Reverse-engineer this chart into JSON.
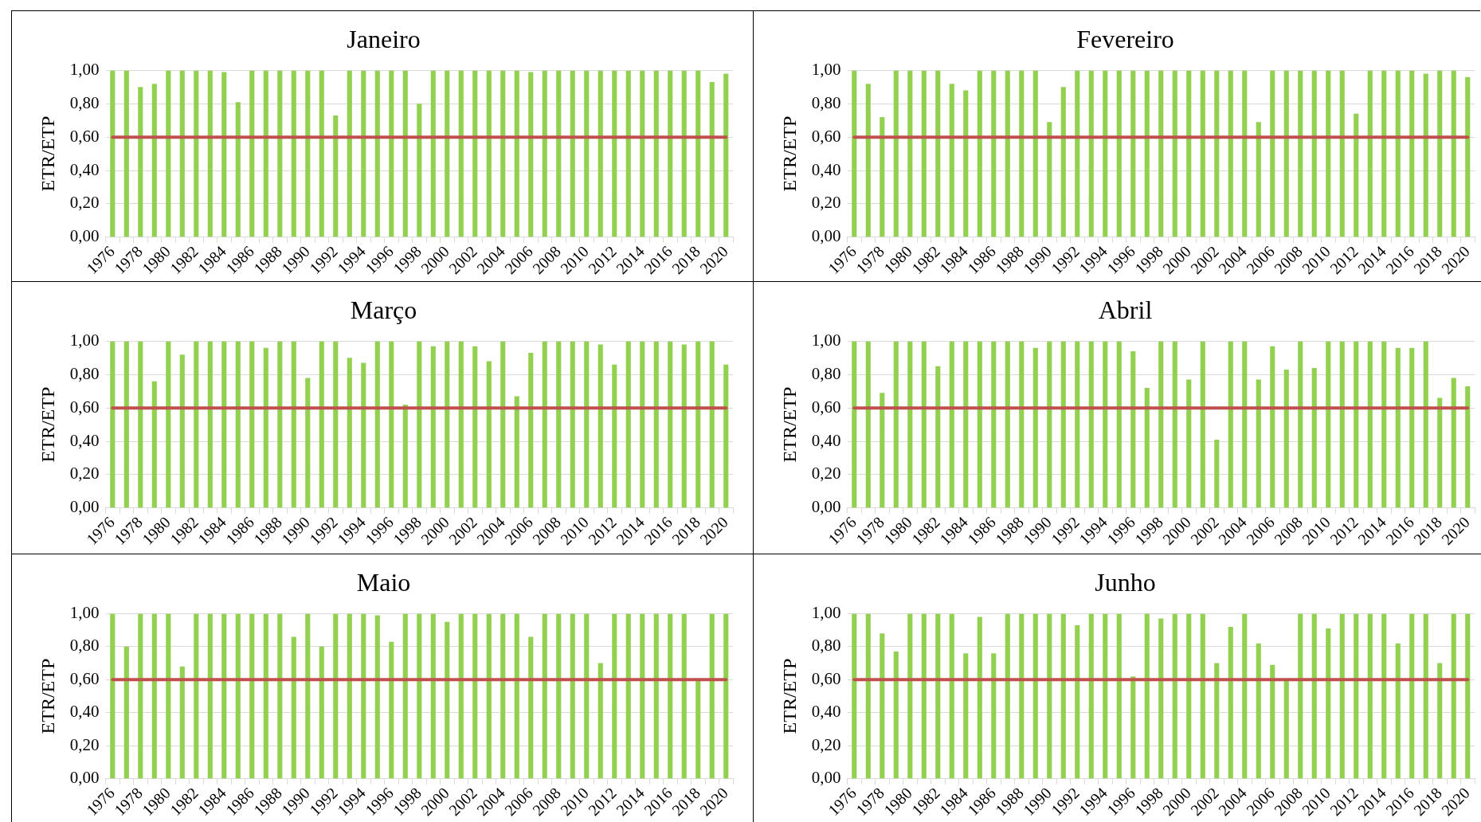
{
  "chart_data": [
    {
      "type": "bar",
      "title": "Janeiro",
      "ylabel": "ETR/ETP",
      "color": "#92d050",
      "ylim": [
        0,
        1
      ],
      "yticks": [
        {
          "value": 0,
          "label": "0,00"
        },
        {
          "value": 0.2,
          "label": "0,20"
        },
        {
          "value": 0.4,
          "label": "0,40"
        },
        {
          "value": 0.6,
          "label": "0,60"
        },
        {
          "value": 0.8,
          "label": "0,80"
        },
        {
          "value": 1,
          "label": "1,00"
        }
      ],
      "grid": "y",
      "ref_lines": [
        {
          "axis": "y",
          "value": 0.6,
          "color": "#c0504d"
        }
      ],
      "categories": [
        "1976",
        null,
        "1978",
        null,
        "1980",
        null,
        "1982",
        null,
        "1984",
        null,
        "1986",
        null,
        "1988",
        null,
        "1990",
        null,
        "1992",
        null,
        "1994",
        null,
        "1996",
        null,
        "1998",
        null,
        "2000",
        null,
        "2002",
        null,
        "2004",
        null,
        "2006",
        null,
        "2008",
        null,
        "2010",
        null,
        "2012",
        null,
        "2014",
        null,
        "2016",
        null,
        "2018",
        null,
        "2020"
      ],
      "values": [
        1,
        1,
        0.9,
        0.92,
        1,
        1,
        1,
        1,
        0.99,
        0.81,
        1,
        1,
        1,
        1,
        1,
        1,
        0.73,
        1,
        1,
        1,
        1,
        1,
        0.8,
        1,
        1,
        1,
        1,
        1,
        1,
        1,
        0.99,
        1,
        1,
        1,
        1,
        1,
        1,
        1,
        1,
        1,
        1,
        1,
        1,
        0.93,
        0.98
      ]
    },
    {
      "type": "bar",
      "title": "Fevereiro",
      "ylabel": "ETR/ETP",
      "color": "#92d050",
      "ylim": [
        0,
        1
      ],
      "yticks": [
        {
          "value": 0,
          "label": "0,00"
        },
        {
          "value": 0.2,
          "label": "0,20"
        },
        {
          "value": 0.4,
          "label": "0,40"
        },
        {
          "value": 0.6,
          "label": "0,60"
        },
        {
          "value": 0.8,
          "label": "0,80"
        },
        {
          "value": 1,
          "label": "1,00"
        }
      ],
      "grid": "y",
      "ref_lines": [
        {
          "axis": "y",
          "value": 0.6,
          "color": "#c0504d"
        }
      ],
      "categories": [
        "1976",
        null,
        "1978",
        null,
        "1980",
        null,
        "1982",
        null,
        "1984",
        null,
        "1986",
        null,
        "1988",
        null,
        "1990",
        null,
        "1992",
        null,
        "1994",
        null,
        "1996",
        null,
        "1998",
        null,
        "2000",
        null,
        "2002",
        null,
        "2004",
        null,
        "2006",
        null,
        "2008",
        null,
        "2010",
        null,
        "2012",
        null,
        "2014",
        null,
        "2016",
        null,
        "2018",
        null,
        "2020"
      ],
      "values": [
        1,
        0.92,
        0.72,
        1,
        1,
        1,
        1,
        0.92,
        0.88,
        1,
        1,
        1,
        1,
        1,
        0.69,
        0.9,
        1,
        1,
        1,
        1,
        1,
        1,
        1,
        1,
        1,
        1,
        1,
        1,
        1,
        0.69,
        1,
        1,
        1,
        1,
        1,
        1,
        0.74,
        1,
        1,
        1,
        1,
        0.98,
        1,
        1,
        0.96
      ]
    },
    {
      "type": "bar",
      "title": "Março",
      "ylabel": "ETR/ETP",
      "color": "#92d050",
      "ylim": [
        0,
        1
      ],
      "yticks": [
        {
          "value": 0,
          "label": "0,00"
        },
        {
          "value": 0.2,
          "label": "0,20"
        },
        {
          "value": 0.4,
          "label": "0,40"
        },
        {
          "value": 0.6,
          "label": "0,60"
        },
        {
          "value": 0.8,
          "label": "0,80"
        },
        {
          "value": 1,
          "label": "1,00"
        }
      ],
      "grid": "y",
      "ref_lines": [
        {
          "axis": "y",
          "value": 0.6,
          "color": "#c0504d"
        }
      ],
      "categories": [
        "1976",
        null,
        "1978",
        null,
        "1980",
        null,
        "1982",
        null,
        "1984",
        null,
        "1986",
        null,
        "1988",
        null,
        "1990",
        null,
        "1992",
        null,
        "1994",
        null,
        "1996",
        null,
        "1998",
        null,
        "2000",
        null,
        "2002",
        null,
        "2004",
        null,
        "2006",
        null,
        "2008",
        null,
        "2010",
        null,
        "2012",
        null,
        "2014",
        null,
        "2016",
        null,
        "2018",
        null,
        "2020"
      ],
      "values": [
        1,
        1,
        1,
        0.76,
        1,
        0.92,
        1,
        1,
        1,
        1,
        1,
        0.96,
        1,
        1,
        0.78,
        1,
        1,
        0.9,
        0.87,
        1,
        1,
        0.62,
        1,
        0.97,
        1,
        1,
        0.97,
        0.88,
        1,
        0.67,
        0.93,
        1,
        1,
        1,
        1,
        0.98,
        0.86,
        1,
        1,
        1,
        1,
        0.98,
        1,
        1,
        0.86
      ]
    },
    {
      "type": "bar",
      "title": "Abril",
      "ylabel": "ETR/ETP",
      "color": "#92d050",
      "ylim": [
        0,
        1
      ],
      "yticks": [
        {
          "value": 0,
          "label": "0,00"
        },
        {
          "value": 0.2,
          "label": "0,20"
        },
        {
          "value": 0.4,
          "label": "0,40"
        },
        {
          "value": 0.6,
          "label": "0,60"
        },
        {
          "value": 0.8,
          "label": "0,80"
        },
        {
          "value": 1,
          "label": "1,00"
        }
      ],
      "grid": "y",
      "ref_lines": [
        {
          "axis": "y",
          "value": 0.6,
          "color": "#c0504d"
        }
      ],
      "categories": [
        "1976",
        null,
        "1978",
        null,
        "1980",
        null,
        "1982",
        null,
        "1984",
        null,
        "1986",
        null,
        "1988",
        null,
        "1990",
        null,
        "1992",
        null,
        "1994",
        null,
        "1996",
        null,
        "1998",
        null,
        "2000",
        null,
        "2002",
        null,
        "2004",
        null,
        "2006",
        null,
        "2008",
        null,
        "2010",
        null,
        "2012",
        null,
        "2014",
        null,
        "2016",
        null,
        "2018",
        null,
        "2020"
      ],
      "values": [
        1,
        1,
        0.69,
        1,
        1,
        1,
        0.85,
        1,
        1,
        1,
        1,
        1,
        1,
        0.96,
        1,
        1,
        1,
        1,
        1,
        1,
        0.94,
        0.72,
        1,
        1,
        0.77,
        1,
        0.41,
        1,
        1,
        0.77,
        0.97,
        0.83,
        1,
        0.84,
        1,
        1,
        1,
        1,
        1,
        0.96,
        0.96,
        1,
        0.66,
        0.78,
        0.73
      ]
    },
    {
      "type": "bar",
      "title": "Maio",
      "ylabel": "ETR/ETP",
      "color": "#92d050",
      "ylim": [
        0,
        1
      ],
      "yticks": [
        {
          "value": 0,
          "label": "0,00"
        },
        {
          "value": 0.2,
          "label": "0,20"
        },
        {
          "value": 0.4,
          "label": "0,40"
        },
        {
          "value": 0.6,
          "label": "0,60"
        },
        {
          "value": 0.8,
          "label": "0,80"
        },
        {
          "value": 1,
          "label": "1,00"
        }
      ],
      "grid": "y",
      "ref_lines": [
        {
          "axis": "y",
          "value": 0.6,
          "color": "#c0504d"
        }
      ],
      "categories": [
        "1976",
        null,
        "1978",
        null,
        "1980",
        null,
        "1982",
        null,
        "1984",
        null,
        "1986",
        null,
        "1988",
        null,
        "1990",
        null,
        "1992",
        null,
        "1994",
        null,
        "1996",
        null,
        "1998",
        null,
        "2000",
        null,
        "2002",
        null,
        "2004",
        null,
        "2006",
        null,
        "2008",
        null,
        "2010",
        null,
        "2012",
        null,
        "2014",
        null,
        "2016",
        null,
        "2018",
        null,
        "2020"
      ],
      "values": [
        1,
        0.8,
        1,
        1,
        1,
        0.68,
        1,
        1,
        1,
        1,
        1,
        1,
        1,
        0.86,
        1,
        0.8,
        1,
        1,
        1,
        0.99,
        0.83,
        1,
        1,
        1,
        0.95,
        1,
        1,
        1,
        1,
        1,
        0.86,
        1,
        1,
        1,
        1,
        0.7,
        1,
        1,
        1,
        1,
        1,
        1,
        0.6,
        1,
        1
      ]
    },
    {
      "type": "bar",
      "title": "Junho",
      "ylabel": "ETR/ETP",
      "color": "#92d050",
      "ylim": [
        0,
        1
      ],
      "yticks": [
        {
          "value": 0,
          "label": "0,00"
        },
        {
          "value": 0.2,
          "label": "0,20"
        },
        {
          "value": 0.4,
          "label": "0,40"
        },
        {
          "value": 0.6,
          "label": "0,60"
        },
        {
          "value": 0.8,
          "label": "0,80"
        },
        {
          "value": 1,
          "label": "1,00"
        }
      ],
      "grid": "y",
      "ref_lines": [
        {
          "axis": "y",
          "value": 0.6,
          "color": "#c0504d"
        }
      ],
      "categories": [
        "1976",
        null,
        "1978",
        null,
        "1980",
        null,
        "1982",
        null,
        "1984",
        null,
        "1986",
        null,
        "1988",
        null,
        "1990",
        null,
        "1992",
        null,
        "1994",
        null,
        "1996",
        null,
        "1998",
        null,
        "2000",
        null,
        "2002",
        null,
        "2004",
        null,
        "2006",
        null,
        "2008",
        null,
        "2010",
        null,
        "2012",
        null,
        "2014",
        null,
        "2016",
        null,
        "2018",
        null,
        "2020"
      ],
      "values": [
        1,
        1,
        0.88,
        0.77,
        1,
        1,
        1,
        1,
        0.76,
        0.98,
        0.76,
        1,
        1,
        1,
        1,
        1,
        0.93,
        1,
        1,
        1,
        0.62,
        1,
        0.97,
        1,
        1,
        1,
        0.7,
        0.92,
        1,
        0.82,
        0.69,
        0.6,
        1,
        1,
        0.91,
        1,
        1,
        1,
        1,
        0.82,
        1,
        1,
        0.7,
        1,
        1
      ]
    }
  ]
}
